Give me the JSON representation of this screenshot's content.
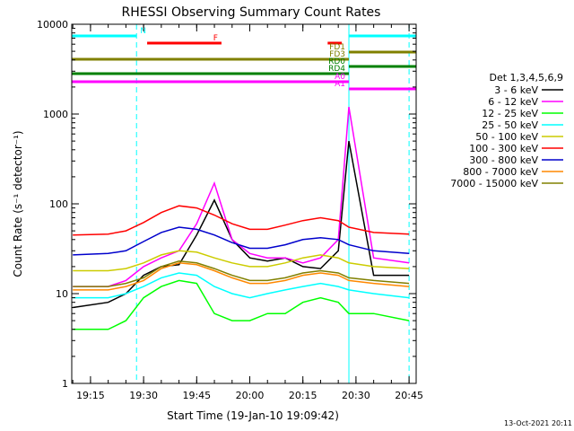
{
  "chart_data": {
    "type": "line",
    "title": "RHESSI Observing Summary Count Rates",
    "xlabel": "Start Time (19-Jan-10 19:09:42)",
    "ylabel": "Count Rate (s⁻¹ detector⁻¹)",
    "y_scale": "log",
    "ylim": [
      1,
      10000
    ],
    "xlim": [
      "19:09:42",
      "20:47:00"
    ],
    "x_ticks": [
      "19:15",
      "19:30",
      "19:45",
      "20:00",
      "20:15",
      "20:30",
      "20:45"
    ],
    "y_ticks": [
      "1",
      "10",
      "100",
      "1000",
      "10000"
    ],
    "timestamp": "13-Oct-2021 20:11",
    "legend": {
      "title": "Det 1,3,4,5,6,9",
      "position": "right",
      "entries": [
        {
          "label": "3 - 6 keV",
          "color": "#000000"
        },
        {
          "label": "6 - 12 keV",
          "color": "#ff00ff"
        },
        {
          "label": "12 - 25 keV",
          "color": "#00ff00"
        },
        {
          "label": "25 - 50 keV",
          "color": "#00ffff"
        },
        {
          "label": "50 - 100 keV",
          "color": "#cccc00"
        },
        {
          "label": "100 - 300 keV",
          "color": "#ff0000"
        },
        {
          "label": "300 - 800 keV",
          "color": "#0000cc"
        },
        {
          "label": "800 - 7000 keV",
          "color": "#ff8800"
        },
        {
          "label": "7000 - 15000 keV",
          "color": "#808000"
        }
      ]
    },
    "x": [
      "19:10",
      "19:20",
      "19:25",
      "19:30",
      "19:35",
      "19:40",
      "19:45",
      "19:50",
      "19:55",
      "20:00",
      "20:05",
      "20:10",
      "20:15",
      "20:20",
      "20:25",
      "20:28",
      "20:35",
      "20:45"
    ],
    "series": [
      {
        "name": "3 - 6 keV",
        "color": "#000000",
        "values": [
          7,
          8,
          10,
          16,
          20,
          21,
          45,
          110,
          40,
          25,
          23,
          25,
          20,
          19,
          30,
          500,
          16,
          16
        ]
      },
      {
        "name": "6 - 12 keV",
        "color": "#ff00ff",
        "values": [
          12,
          12,
          14,
          20,
          25,
          30,
          60,
          170,
          40,
          28,
          25,
          25,
          22,
          25,
          40,
          1200,
          25,
          22
        ]
      },
      {
        "name": "12 - 25 keV",
        "color": "#00ff00",
        "values": [
          4,
          4,
          5,
          9,
          12,
          14,
          13,
          6,
          5,
          5,
          6,
          6,
          8,
          9,
          8,
          6,
          6,
          5
        ]
      },
      {
        "name": "25 - 50 keV",
        "color": "#00ffff",
        "values": [
          9,
          9,
          10,
          12,
          15,
          17,
          16,
          12,
          10,
          9,
          10,
          11,
          12,
          13,
          12,
          11,
          10,
          9
        ]
      },
      {
        "name": "50 - 100 keV",
        "color": "#cccc00",
        "values": [
          18,
          18,
          19,
          22,
          27,
          30,
          29,
          25,
          22,
          20,
          20,
          22,
          25,
          27,
          25,
          22,
          20,
          19
        ]
      },
      {
        "name": "100 - 300 keV",
        "color": "#ff0000",
        "values": [
          45,
          46,
          50,
          62,
          80,
          95,
          90,
          75,
          60,
          52,
          52,
          58,
          65,
          70,
          65,
          55,
          48,
          46
        ]
      },
      {
        "name": "300 - 800 keV",
        "color": "#0000cc",
        "values": [
          27,
          28,
          30,
          38,
          48,
          55,
          52,
          45,
          37,
          32,
          32,
          35,
          40,
          42,
          40,
          35,
          30,
          28
        ]
      },
      {
        "name": "800 - 7000 keV",
        "color": "#ff8800",
        "values": [
          11,
          11,
          12,
          14,
          19,
          22,
          21,
          18,
          15,
          13,
          13,
          14,
          16,
          17,
          16,
          14,
          13,
          12
        ]
      },
      {
        "name": "7000 - 15000 keV",
        "color": "#808000",
        "values": [
          12,
          12,
          13,
          15,
          20,
          23,
          22,
          19,
          16,
          14,
          14,
          15,
          17,
          18,
          17,
          15,
          14,
          13
        ]
      }
    ],
    "flag_bars": [
      {
        "label": "N",
        "color": "#00ffff",
        "segments": [
          [
            "19:09:42",
            "19:28"
          ],
          [
            "20:28",
            "20:47"
          ]
        ]
      },
      {
        "label": "F",
        "color": "#ff0000",
        "segments": [
          [
            "19:31",
            "19:52"
          ],
          [
            "20:22",
            "20:26"
          ]
        ]
      },
      {
        "label": "FD1",
        "color": "#808000",
        "segments": [
          [
            "20:28",
            "20:47"
          ]
        ]
      },
      {
        "label": "FD3",
        "color": "#808000",
        "segments": [
          [
            "19:09:42",
            "20:28"
          ]
        ]
      },
      {
        "label": "RD0",
        "color": "#008000",
        "segments": [
          [
            "20:28",
            "20:47"
          ]
        ]
      },
      {
        "label": "RD4",
        "color": "#008000",
        "segments": [
          [
            "19:09:42",
            "20:28"
          ]
        ]
      },
      {
        "label": "A0",
        "color": "#ff00ff",
        "segments": [
          [
            "19:09:42",
            "20:28"
          ]
        ]
      },
      {
        "label": "A1",
        "color": "#ff00ff",
        "segments": [
          [
            "20:28",
            "20:47"
          ]
        ]
      }
    ],
    "vertical_markers": [
      {
        "time": "19:28",
        "color": "#00ffff",
        "style": "dashed"
      },
      {
        "time": "20:28",
        "color": "#00ffff",
        "style": "solid"
      },
      {
        "time": "20:45",
        "color": "#00ffff",
        "style": "dashed"
      }
    ]
  }
}
